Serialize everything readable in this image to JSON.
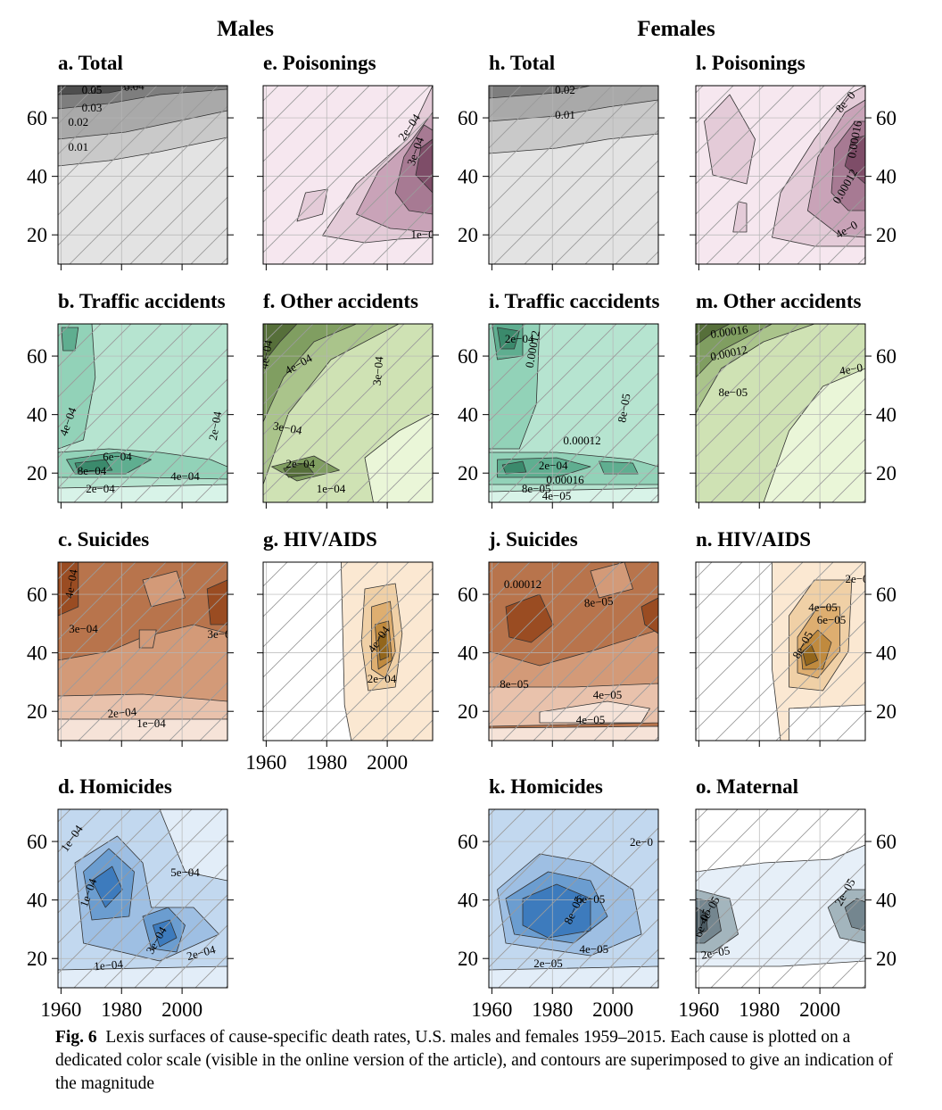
{
  "figure": {
    "group_headings": [
      "Males",
      "Females"
    ],
    "caption_label": "Fig. 6",
    "caption_text": "Lexis surfaces of cause-specific death rates, U.S. males and females 1959–2015. Each cause is plotted on a dedicated color scale (visible in the online version of the article), and contours are superimposed to give an indication of the magnitude"
  },
  "axes": {
    "x_ticks": [
      "1960",
      "1980",
      "2000"
    ],
    "y_ticks": [
      "20",
      "40",
      "60"
    ]
  },
  "chart_data": [
    {
      "type": "heatmap",
      "panel": "a",
      "title": "a. Total",
      "sex": "Males",
      "x_range": [
        1959,
        2015
      ],
      "y_range": [
        10,
        71
      ],
      "palette": "grey",
      "contour_labels": [
        "0.05",
        "0.04",
        "0.03",
        "0.02",
        "0.01"
      ]
    },
    {
      "type": "heatmap",
      "panel": "e",
      "title": "e. Poisonings",
      "sex": "Males",
      "x_range": [
        1959,
        2015
      ],
      "y_range": [
        10,
        71
      ],
      "palette": "purple",
      "contour_labels": [
        "2e−04",
        "3e−04",
        "1e−0"
      ]
    },
    {
      "type": "heatmap",
      "panel": "h",
      "title": "h. Total",
      "sex": "Females",
      "x_range": [
        1959,
        2015
      ],
      "y_range": [
        10,
        71
      ],
      "palette": "grey",
      "contour_labels": [
        "0.02",
        "0.01"
      ]
    },
    {
      "type": "heatmap",
      "panel": "l",
      "title": "l. Poisonings",
      "sex": "Females",
      "x_range": [
        1959,
        2015
      ],
      "y_range": [
        10,
        71
      ],
      "palette": "purple",
      "contour_labels": [
        "8e−0",
        "0.00016",
        "0.00012",
        "4e−0"
      ]
    },
    {
      "type": "heatmap",
      "panel": "b",
      "title": "b. Traffic accidents",
      "sex": "Males",
      "x_range": [
        1959,
        2015
      ],
      "y_range": [
        10,
        71
      ],
      "palette": "teal",
      "contour_labels": [
        "4e−04",
        "6e−04",
        "8e−04",
        "4e−04",
        "2e−04",
        "2e−04"
      ]
    },
    {
      "type": "heatmap",
      "panel": "f",
      "title": "f. Other accidents",
      "sex": "Males",
      "x_range": [
        1959,
        2015
      ],
      "y_range": [
        10,
        71
      ],
      "palette": "olive",
      "contour_labels": [
        "4e−04",
        "4e−04",
        "3e−04",
        "3e−04",
        "2e−04",
        "1e−04"
      ]
    },
    {
      "type": "heatmap",
      "panel": "i",
      "title": "i. Traffic caccidents",
      "sex": "Females",
      "x_range": [
        1959,
        2015
      ],
      "y_range": [
        10,
        71
      ],
      "palette": "teal",
      "contour_labels": [
        "2e−04",
        "0.00012",
        "8e−05",
        "0.00012",
        "2e−04",
        "0.00016",
        "8e−05",
        "4e−05"
      ]
    },
    {
      "type": "heatmap",
      "panel": "m",
      "title": "m. Other accidents",
      "sex": "Females",
      "x_range": [
        1959,
        2015
      ],
      "y_range": [
        10,
        71
      ],
      "palette": "olive",
      "contour_labels": [
        "0.00016",
        "0.00012",
        "8e−05",
        "4e−0"
      ]
    },
    {
      "type": "heatmap",
      "panel": "c",
      "title": "c. Suicides",
      "sex": "Males",
      "x_range": [
        1959,
        2015
      ],
      "y_range": [
        10,
        71
      ],
      "palette": "orange",
      "contour_labels": [
        "4e−04",
        "3e−04",
        "3e−0",
        "2e−04",
        "1e−04"
      ]
    },
    {
      "type": "heatmap",
      "panel": "g",
      "title": "g. HIV/AIDS",
      "sex": "Males",
      "x_range": [
        1959,
        2015
      ],
      "y_range": [
        10,
        71
      ],
      "palette": "gold",
      "contour_labels": [
        "4e−04",
        "2e−04"
      ]
    },
    {
      "type": "heatmap",
      "panel": "j",
      "title": "j. Suicides",
      "sex": "Females",
      "x_range": [
        1959,
        2015
      ],
      "y_range": [
        10,
        71
      ],
      "palette": "orange",
      "contour_labels": [
        "0.00012",
        "8e−05",
        "8e−05",
        "4e−05",
        "4e−05"
      ]
    },
    {
      "type": "heatmap",
      "panel": "n",
      "title": "n. HIV/AIDS",
      "sex": "Females",
      "x_range": [
        1959,
        2015
      ],
      "y_range": [
        10,
        71
      ],
      "palette": "gold",
      "contour_labels": [
        "2e−0",
        "4e−05",
        "6e−05",
        "8e−05"
      ]
    },
    {
      "type": "heatmap",
      "panel": "d",
      "title": "d. Homicides",
      "sex": "Males",
      "x_range": [
        1959,
        2015
      ],
      "y_range": [
        10,
        71
      ],
      "palette": "blue",
      "contour_labels": [
        "1e−04",
        "1e−04",
        "3e−04",
        "5e−04",
        "2e−04",
        "1e−04"
      ]
    },
    {
      "type": "heatmap",
      "panel": "k",
      "title": "k. Homicides",
      "sex": "Females",
      "x_range": [
        1959,
        2015
      ],
      "y_range": [
        10,
        71
      ],
      "palette": "blue",
      "contour_labels": [
        "2e−0",
        "6e−05",
        "8e−05",
        "4e−05",
        "2e−05"
      ]
    },
    {
      "type": "heatmap",
      "panel": "o",
      "title": "o. Maternal",
      "sex": "Females",
      "x_range": [
        1959,
        2015
      ],
      "y_range": [
        10,
        71
      ],
      "palette": "slate",
      "contour_labels": [
        "4e−05",
        "6e−05",
        "2e−05",
        "2e−05"
      ]
    }
  ],
  "colors": {
    "grey": [
      "#e3e3e3",
      "#c9c9c9",
      "#a9a9a9",
      "#7e7e7e",
      "#4e4e4e"
    ],
    "purple": [
      "#f6e7ef",
      "#e4cbd8",
      "#c9a3b8",
      "#a77a93",
      "#7e4d68"
    ],
    "teal": [
      "#d8f3e8",
      "#b6e4d0",
      "#92d2b8",
      "#5fae90",
      "#3b8a6c"
    ],
    "olive": [
      "#eaf6d8",
      "#cfe2b4",
      "#aac48b",
      "#809e61",
      "#566f3a"
    ],
    "orange": [
      "#f6e3d8",
      "#e9c2ac",
      "#d39a78",
      "#b8744c",
      "#9a4c22"
    ],
    "gold": [
      "#fbe8d2",
      "#f0d0a6",
      "#deae70",
      "#c08a3e",
      "#93661c"
    ],
    "blue": [
      "#e2edf8",
      "#c2d8ef",
      "#9ebfe3",
      "#6b9dd0",
      "#3d7bbd"
    ],
    "slate": [
      "#e6eff8",
      "#c7d6dd",
      "#a3b5bd",
      "#74868f",
      "#4b5b63"
    ]
  }
}
